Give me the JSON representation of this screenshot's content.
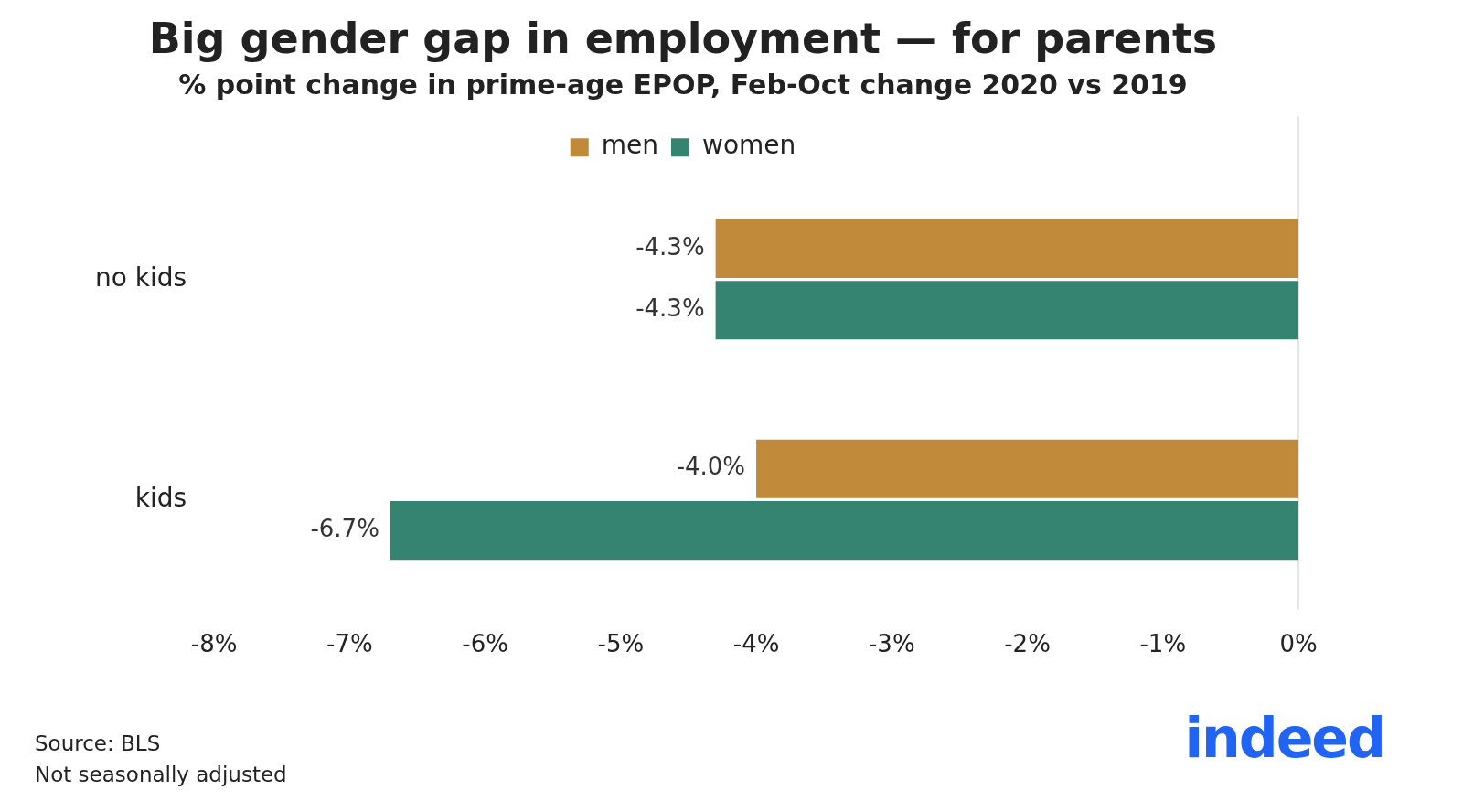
{
  "chart_data": {
    "type": "bar",
    "orientation": "horizontal",
    "title": "Big gender gap in employment — for parents",
    "subtitle": "% point change in prime-age EPOP, Feb-Oct change 2020 vs 2019",
    "categories": [
      "no kids",
      "kids"
    ],
    "series": [
      {
        "name": "men",
        "color": "#c08a3a",
        "values": [
          -4.3,
          -4.0
        ],
        "value_labels": [
          "-4.3%",
          "-4.0%"
        ]
      },
      {
        "name": "women",
        "color": "#358471",
        "values": [
          -4.3,
          -6.7
        ],
        "value_labels": [
          "-4.3%",
          "-6.7%"
        ]
      }
    ],
    "xlim": [
      -8,
      0
    ],
    "xticks": [
      {
        "value": -8,
        "label": "-8%"
      },
      {
        "value": -7,
        "label": "-7%"
      },
      {
        "value": -6,
        "label": "-6%"
      },
      {
        "value": -5,
        "label": "-5%"
      },
      {
        "value": -4,
        "label": "-4%"
      },
      {
        "value": -3,
        "label": "-3%"
      },
      {
        "value": -2,
        "label": "-2%"
      },
      {
        "value": -1,
        "label": "-1%"
      },
      {
        "value": 0,
        "label": "0%"
      }
    ],
    "grid": false,
    "legend": "top",
    "data_labels": true,
    "source": "Source: BLS",
    "note": "Not seasonally adjusted",
    "logo": "indeed"
  }
}
